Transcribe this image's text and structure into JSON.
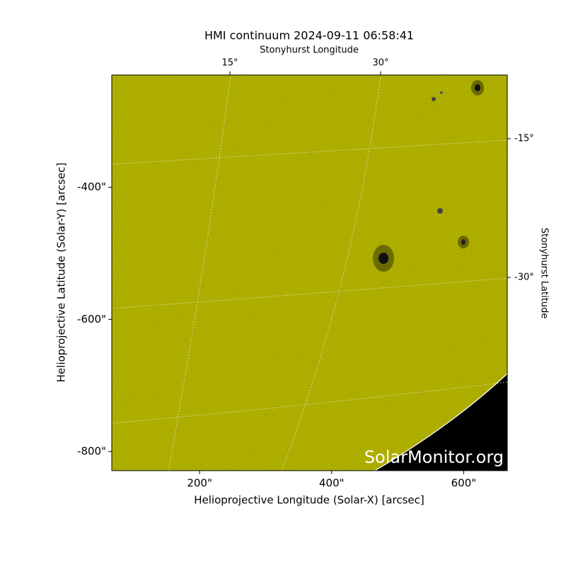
{
  "chart_data": {
    "type": "image",
    "title": "HMI continuum 2024-09-11 06:58:41",
    "xlabel": "Helioprojective Longitude (Solar-X) [arcsec]",
    "ylabel": "Helioprojective Latitude (Solar-Y) [arcsec]",
    "top_label": "Stonyhurst Longitude",
    "right_label": "Stonyhurst Latitude",
    "watermark": "SolarMonitor.org",
    "xlim": [
      67,
      666
    ],
    "ylim": [
      -829,
      -230
    ],
    "xticks": [
      {
        "value": 200,
        "label": "200\""
      },
      {
        "value": 400,
        "label": "400\""
      },
      {
        "value": 600,
        "label": "600\""
      }
    ],
    "yticks": [
      {
        "value": -400,
        "label": "-400\""
      },
      {
        "value": -600,
        "label": "-600\""
      },
      {
        "value": -800,
        "label": "-800\""
      }
    ],
    "top_ticks": [
      {
        "value": 15,
        "label": "15°"
      },
      {
        "value": 30,
        "label": "30°"
      }
    ],
    "right_ticks": [
      {
        "value": -15,
        "label": "-15°"
      },
      {
        "value": -30,
        "label": "-30°"
      }
    ]
  }
}
